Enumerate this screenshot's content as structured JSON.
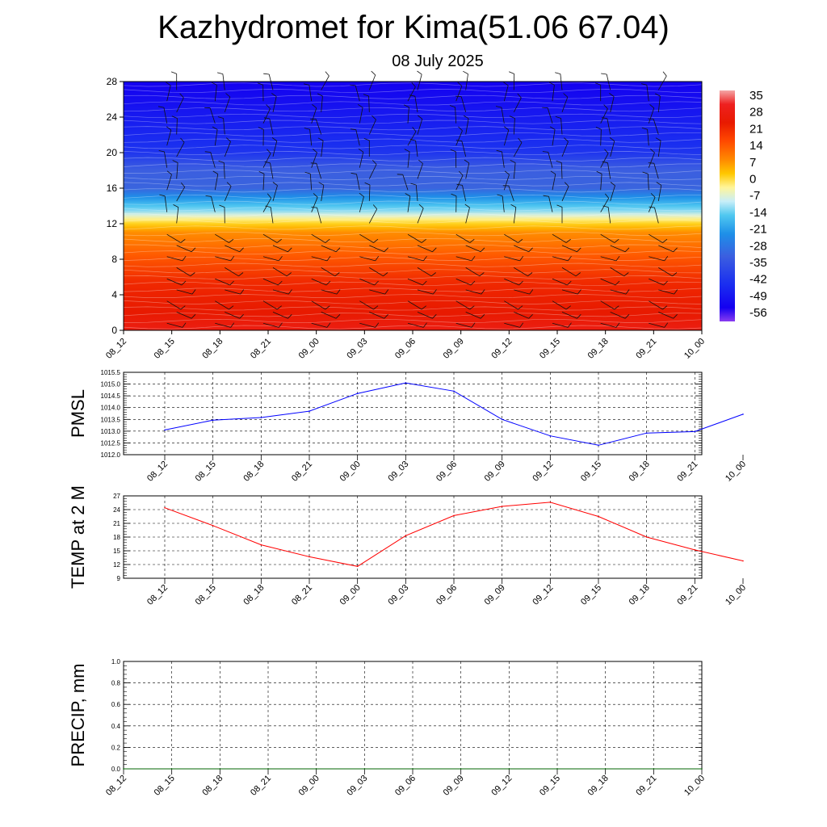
{
  "title": "Kazhydromet for Kima(51.06 67.04)",
  "subtitle": "08 July 2025",
  "time_labels": [
    "08_12",
    "08_15",
    "08_18",
    "08_21",
    "09_00",
    "09_03",
    "09_06",
    "09_09",
    "09_12",
    "09_15",
    "09_18",
    "09_21",
    "10_00"
  ],
  "chart_data": [
    {
      "type": "heatmap",
      "title": "",
      "x": [
        "08_12",
        "08_15",
        "08_18",
        "08_21",
        "09_00",
        "09_03",
        "09_06",
        "09_09",
        "09_12",
        "09_15",
        "09_18",
        "09_21",
        "10_00"
      ],
      "yticks": [
        0,
        4,
        8,
        12,
        16,
        20,
        24,
        28
      ],
      "ylim": [
        0,
        28
      ],
      "colorbar_labels": [
        "35",
        "28",
        "21",
        "14",
        "7",
        "0",
        "-7",
        "-14",
        "-21",
        "-28",
        "-35",
        "-42",
        "-49",
        "-56"
      ],
      "colorbar_range": [
        -60,
        38
      ],
      "temperature_profile": [
        {
          "y": 0,
          "value": 32
        },
        {
          "y": 4,
          "value": 24
        },
        {
          "y": 8,
          "value": 15
        },
        {
          "y": 11,
          "value": 8
        },
        {
          "y": 12.5,
          "value": -6
        },
        {
          "y": 13.5,
          "value": -18
        },
        {
          "y": 16,
          "value": -35
        },
        {
          "y": 20,
          "value": -48
        },
        {
          "y": 24,
          "value": -52
        },
        {
          "y": 28,
          "value": -56
        }
      ],
      "overlay": "wind barbs",
      "grid": false
    },
    {
      "type": "line",
      "ylabel": "PMSL",
      "x": [
        "08_12",
        "08_15",
        "08_18",
        "08_21",
        "09_00",
        "09_03",
        "09_06",
        "09_09",
        "09_12",
        "09_15",
        "09_18",
        "09_21",
        "10_00"
      ],
      "yticks": [
        "1012.0",
        "1012.5",
        "1013.0",
        "1013.5",
        "1014.0",
        "1014.5",
        "1015.0",
        "1015.5"
      ],
      "ylim": [
        1012.0,
        1015.5
      ],
      "series": [
        {
          "values": [
            1013.05,
            1013.47,
            1013.58,
            1013.85,
            1014.6,
            1015.05,
            1014.7,
            1013.5,
            1012.8,
            1012.4,
            1012.92,
            1012.98,
            1013.72
          ],
          "color": "#0000ff"
        }
      ],
      "grid": true
    },
    {
      "type": "line",
      "ylabel": "TEMP at 2 M",
      "x": [
        "08_12",
        "08_15",
        "08_18",
        "08_21",
        "09_00",
        "09_03",
        "09_06",
        "09_09",
        "09_12",
        "09_15",
        "09_18",
        "09_21",
        "10_00"
      ],
      "yticks": [
        "9",
        "12",
        "15",
        "18",
        "21",
        "24",
        "27"
      ],
      "ylim": [
        9,
        27
      ],
      "series": [
        {
          "values": [
            24.4,
            20.5,
            16.3,
            13.7,
            11.6,
            18.3,
            22.7,
            24.7,
            25.6,
            22.5,
            18.0,
            15.2,
            12.8
          ],
          "color": "#ff0000"
        }
      ],
      "grid": true
    },
    {
      "type": "line",
      "ylabel": "PRECIP, mm",
      "x": [
        "08_12",
        "08_15",
        "08_18",
        "08_21",
        "09_00",
        "09_03",
        "09_06",
        "09_09",
        "09_12",
        "09_15",
        "09_18",
        "09_21",
        "10_00"
      ],
      "yticks": [
        "0.0",
        "0.2",
        "0.4",
        "0.6",
        "0.8",
        "1.0"
      ],
      "ylim": [
        0,
        1.0
      ],
      "series": [
        {
          "values": [
            0,
            0,
            0,
            0,
            0,
            0,
            0,
            0,
            0,
            0,
            0,
            0,
            0
          ],
          "color": "#006400"
        }
      ],
      "grid": true
    }
  ]
}
